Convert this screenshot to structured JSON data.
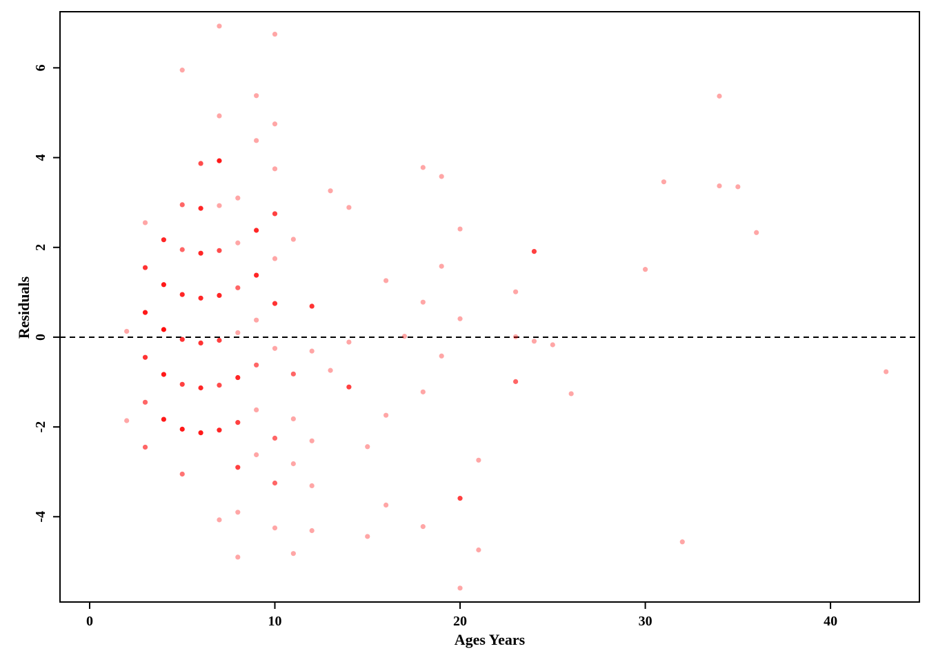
{
  "chart_data": {
    "type": "scatter",
    "title": "",
    "xlabel": "Ages Years",
    "ylabel": "Residuals",
    "xlim": [
      -1.6,
      44.8
    ],
    "ylim": [
      -5.9,
      7.25
    ],
    "xticks": [
      0,
      10,
      20,
      30,
      40
    ],
    "yticks": [
      -4,
      -2,
      0,
      2,
      4,
      6
    ],
    "reference_line": {
      "y": 0,
      "style": "dashed",
      "color": "#000000"
    },
    "point_color": "#ff0000",
    "grid": false,
    "legend": "none",
    "points": [
      {
        "x": 2,
        "y": 0.13,
        "a": 0.35
      },
      {
        "x": 2,
        "y": -1.86,
        "a": 0.35
      },
      {
        "x": 3,
        "y": 2.55,
        "a": 0.35
      },
      {
        "x": 3,
        "y": 1.55,
        "a": 0.8
      },
      {
        "x": 3,
        "y": 0.55,
        "a": 0.9
      },
      {
        "x": 3,
        "y": -0.45,
        "a": 0.8
      },
      {
        "x": 3,
        "y": -1.45,
        "a": 0.6
      },
      {
        "x": 3,
        "y": -2.45,
        "a": 0.6
      },
      {
        "x": 4,
        "y": 2.17,
        "a": 0.85
      },
      {
        "x": 4,
        "y": 1.17,
        "a": 0.9
      },
      {
        "x": 4,
        "y": 0.17,
        "a": 0.95
      },
      {
        "x": 4,
        "y": -0.83,
        "a": 0.9
      },
      {
        "x": 4,
        "y": -1.83,
        "a": 0.9
      },
      {
        "x": 5,
        "y": 5.95,
        "a": 0.35
      },
      {
        "x": 5,
        "y": 2.95,
        "a": 0.6
      },
      {
        "x": 5,
        "y": 1.95,
        "a": 0.6
      },
      {
        "x": 5,
        "y": 0.95,
        "a": 0.85
      },
      {
        "x": 5,
        "y": -0.05,
        "a": 0.8
      },
      {
        "x": 5,
        "y": -1.05,
        "a": 0.75
      },
      {
        "x": 5,
        "y": -2.05,
        "a": 0.9
      },
      {
        "x": 5,
        "y": -3.05,
        "a": 0.55
      },
      {
        "x": 6,
        "y": 3.87,
        "a": 0.7
      },
      {
        "x": 6,
        "y": 2.87,
        "a": 0.85
      },
      {
        "x": 6,
        "y": 1.87,
        "a": 0.85
      },
      {
        "x": 6,
        "y": 0.87,
        "a": 0.85
      },
      {
        "x": 6,
        "y": -0.13,
        "a": 0.8
      },
      {
        "x": 6,
        "y": -1.13,
        "a": 0.85
      },
      {
        "x": 6,
        "y": -2.13,
        "a": 0.9
      },
      {
        "x": 7,
        "y": 6.93,
        "a": 0.35
      },
      {
        "x": 7,
        "y": 4.93,
        "a": 0.35
      },
      {
        "x": 7,
        "y": 3.93,
        "a": 0.9
      },
      {
        "x": 7,
        "y": 2.93,
        "a": 0.35
      },
      {
        "x": 7,
        "y": 1.93,
        "a": 0.7
      },
      {
        "x": 7,
        "y": 0.93,
        "a": 0.85
      },
      {
        "x": 7,
        "y": -0.07,
        "a": 0.75
      },
      {
        "x": 7,
        "y": -1.07,
        "a": 0.7
      },
      {
        "x": 7,
        "y": -2.07,
        "a": 0.85
      },
      {
        "x": 7,
        "y": -4.07,
        "a": 0.35
      },
      {
        "x": 8,
        "y": 3.1,
        "a": 0.35
      },
      {
        "x": 8,
        "y": 2.1,
        "a": 0.35
      },
      {
        "x": 8,
        "y": 1.1,
        "a": 0.6
      },
      {
        "x": 8,
        "y": 0.1,
        "a": 0.35
      },
      {
        "x": 8,
        "y": -0.9,
        "a": 0.85
      },
      {
        "x": 8,
        "y": -1.9,
        "a": 0.75
      },
      {
        "x": 8,
        "y": -2.9,
        "a": 0.75
      },
      {
        "x": 8,
        "y": -3.9,
        "a": 0.35
      },
      {
        "x": 8,
        "y": -4.9,
        "a": 0.35
      },
      {
        "x": 9,
        "y": 5.38,
        "a": 0.35
      },
      {
        "x": 9,
        "y": 4.38,
        "a": 0.35
      },
      {
        "x": 9,
        "y": 2.38,
        "a": 0.85
      },
      {
        "x": 9,
        "y": 1.38,
        "a": 0.85
      },
      {
        "x": 9,
        "y": 0.38,
        "a": 0.35
      },
      {
        "x": 9,
        "y": -0.62,
        "a": 0.6
      },
      {
        "x": 9,
        "y": -1.62,
        "a": 0.35
      },
      {
        "x": 9,
        "y": -2.62,
        "a": 0.35
      },
      {
        "x": 10,
        "y": 6.75,
        "a": 0.35
      },
      {
        "x": 10,
        "y": 4.75,
        "a": 0.35
      },
      {
        "x": 10,
        "y": 3.75,
        "a": 0.35
      },
      {
        "x": 10,
        "y": 2.75,
        "a": 0.75
      },
      {
        "x": 10,
        "y": 1.75,
        "a": 0.35
      },
      {
        "x": 10,
        "y": 0.75,
        "a": 0.8
      },
      {
        "x": 10,
        "y": -0.25,
        "a": 0.35
      },
      {
        "x": 10,
        "y": -2.25,
        "a": 0.6
      },
      {
        "x": 10,
        "y": -3.25,
        "a": 0.6
      },
      {
        "x": 10,
        "y": -4.25,
        "a": 0.35
      },
      {
        "x": 11,
        "y": 2.18,
        "a": 0.35
      },
      {
        "x": 11,
        "y": -0.82,
        "a": 0.6
      },
      {
        "x": 11,
        "y": -1.82,
        "a": 0.35
      },
      {
        "x": 11,
        "y": -2.82,
        "a": 0.35
      },
      {
        "x": 11,
        "y": -4.82,
        "a": 0.35
      },
      {
        "x": 12,
        "y": 0.69,
        "a": 0.8
      },
      {
        "x": 12,
        "y": -0.31,
        "a": 0.35
      },
      {
        "x": 12,
        "y": -2.31,
        "a": 0.35
      },
      {
        "x": 12,
        "y": -3.31,
        "a": 0.35
      },
      {
        "x": 12,
        "y": -4.31,
        "a": 0.35
      },
      {
        "x": 13,
        "y": 3.26,
        "a": 0.35
      },
      {
        "x": 13,
        "y": -0.74,
        "a": 0.35
      },
      {
        "x": 14,
        "y": 2.89,
        "a": 0.35
      },
      {
        "x": 14,
        "y": -0.11,
        "a": 0.35
      },
      {
        "x": 14,
        "y": -1.11,
        "a": 0.75
      },
      {
        "x": 15,
        "y": -2.44,
        "a": 0.35
      },
      {
        "x": 15,
        "y": -4.44,
        "a": 0.35
      },
      {
        "x": 16,
        "y": 1.26,
        "a": 0.35
      },
      {
        "x": 16,
        "y": -1.74,
        "a": 0.35
      },
      {
        "x": 16,
        "y": -3.74,
        "a": 0.35
      },
      {
        "x": 17,
        "y": 0.02,
        "a": 0.35
      },
      {
        "x": 18,
        "y": 3.78,
        "a": 0.35
      },
      {
        "x": 18,
        "y": 0.78,
        "a": 0.35
      },
      {
        "x": 18,
        "y": -1.22,
        "a": 0.35
      },
      {
        "x": 18,
        "y": -4.22,
        "a": 0.35
      },
      {
        "x": 19,
        "y": 3.58,
        "a": 0.35
      },
      {
        "x": 19,
        "y": 1.58,
        "a": 0.35
      },
      {
        "x": 19,
        "y": -0.42,
        "a": 0.35
      },
      {
        "x": 20,
        "y": 2.41,
        "a": 0.35
      },
      {
        "x": 20,
        "y": 0.41,
        "a": 0.35
      },
      {
        "x": 20,
        "y": -3.59,
        "a": 0.75
      },
      {
        "x": 20,
        "y": -5.59,
        "a": 0.35
      },
      {
        "x": 21,
        "y": -2.74,
        "a": 0.35
      },
      {
        "x": 21,
        "y": -4.74,
        "a": 0.35
      },
      {
        "x": 23,
        "y": 1.01,
        "a": 0.35
      },
      {
        "x": 23,
        "y": 0.01,
        "a": 0.35
      },
      {
        "x": 23,
        "y": -0.99,
        "a": 0.6
      },
      {
        "x": 24,
        "y": 1.91,
        "a": 0.75
      },
      {
        "x": 24,
        "y": -0.09,
        "a": 0.35
      },
      {
        "x": 25,
        "y": -0.17,
        "a": 0.35
      },
      {
        "x": 26,
        "y": -1.26,
        "a": 0.35
      },
      {
        "x": 30,
        "y": 1.51,
        "a": 0.35
      },
      {
        "x": 31,
        "y": 3.46,
        "a": 0.35
      },
      {
        "x": 32,
        "y": -4.56,
        "a": 0.35
      },
      {
        "x": 34,
        "y": 5.37,
        "a": 0.35
      },
      {
        "x": 34,
        "y": 3.37,
        "a": 0.35
      },
      {
        "x": 35,
        "y": 3.35,
        "a": 0.35
      },
      {
        "x": 36,
        "y": 2.33,
        "a": 0.35
      },
      {
        "x": 43,
        "y": -0.77,
        "a": 0.35
      }
    ]
  }
}
